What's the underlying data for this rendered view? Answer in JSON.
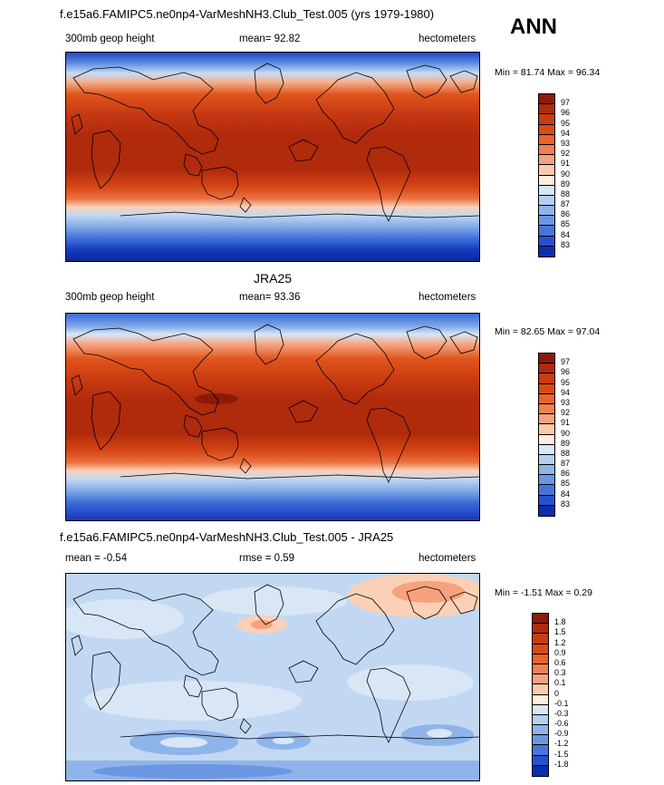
{
  "panel1": {
    "title": "f.e15a6.FAMIPC5.ne0np4-VarMeshNH3.Club_Test.005 (yrs 1979-1980)",
    "season": "ANN",
    "left_label": "300mb geop height",
    "center_label": "mean=  92.82",
    "right_label": "hectometers",
    "minmax": "Min =  81.74 Max =  96.34"
  },
  "panel2": {
    "title": "JRA25",
    "left_label": "300mb geop height",
    "center_label": "mean=  93.36",
    "right_label": "hectometers",
    "minmax": "Min =  82.65 Max =  97.04"
  },
  "panel3": {
    "title": "f.e15a6.FAMIPC5.ne0np4-VarMeshNH3.Club_Test.005 - JRA25",
    "left_label": "mean =  -0.54",
    "center_label": "rmse =   0.59",
    "right_label": "hectometers",
    "minmax": "Min =  -1.51 Max =   0.29"
  },
  "colorbar_abs": {
    "labels": [
      "97",
      "96",
      "95",
      "94",
      "93",
      "92",
      "91",
      "90",
      "89",
      "88",
      "87",
      "86",
      "85",
      "84",
      "83"
    ],
    "colors": [
      "#8c1a0a",
      "#b02a0c",
      "#c93b10",
      "#dc4a14",
      "#e8642a",
      "#f08052",
      "#f6a27e",
      "#fbc9ad",
      "#fdeede",
      "#d8e7f6",
      "#b4d0f0",
      "#8fb4ea",
      "#6b97e2",
      "#4676db",
      "#2452d0",
      "#0b2eae"
    ]
  },
  "colorbar_diff": {
    "labels": [
      "1.8",
      "1.5",
      "1.2",
      "0.9",
      "0.6",
      "0.3",
      "0.1",
      "0",
      "-0.1",
      "-0.3",
      "-0.6",
      "-0.9",
      "-1.2",
      "-1.5",
      "-1.8"
    ],
    "colors": [
      "#8c1a0a",
      "#b02a0c",
      "#c93b10",
      "#dc4a14",
      "#e8642a",
      "#f08052",
      "#f6a27e",
      "#fbc9ad",
      "#fdeede",
      "#d8e7f6",
      "#b4d0f0",
      "#8fb4ea",
      "#6b97e2",
      "#4676db",
      "#2452d0",
      "#0b2eae"
    ]
  }
}
